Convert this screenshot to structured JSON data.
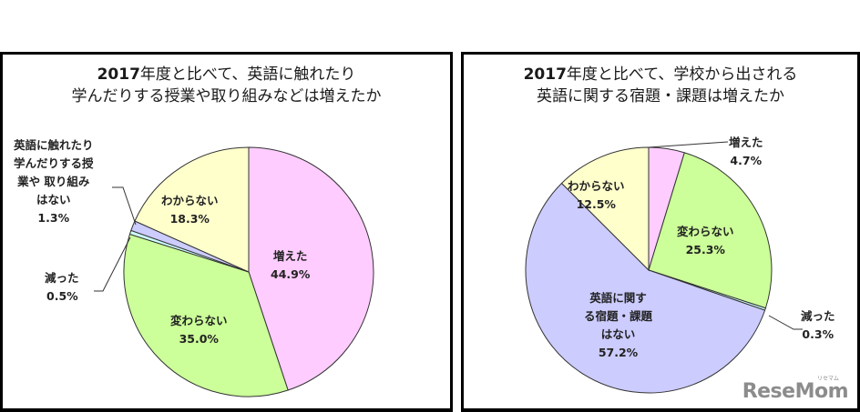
{
  "charts": [
    {
      "title_line1_bold": "2017",
      "title_line1": "年度と比べて、英語に触れたり",
      "title_line2": "学んだりする授業や取り組みなどは増えたか",
      "slices": [
        {
          "label": "増えた",
          "value": "44.9%",
          "color": "#FFCCFF"
        },
        {
          "label": "変わらない",
          "value": "35.0%",
          "color": "#CCFF99"
        },
        {
          "label": "減った",
          "value": "0.5%",
          "color": "#CCFFFF"
        },
        {
          "label_lines": [
            "英語に触れたり",
            "学んだりする授",
            "業や 取り組み",
            "はない"
          ],
          "value": "1.3%",
          "color": "#CCCCFF"
        },
        {
          "label": "わからない",
          "value": "18.3%",
          "color": "#FFFFCC"
        }
      ]
    },
    {
      "title_line1_bold": "2017",
      "title_line1": "年度と比べて、学校から出される",
      "title_line2": "英語に関する宿題・課題は増えたか",
      "slices": [
        {
          "label": "増えた",
          "value": "4.7%",
          "color": "#FFCCFF"
        },
        {
          "label": "変わらない",
          "value": "25.3%",
          "color": "#CCFF99"
        },
        {
          "label": "減った",
          "value": "0.3%",
          "color": "#CCFFFF"
        },
        {
          "label_lines": [
            "英語に関す",
            "る宿題・課題",
            "はない"
          ],
          "value": "57.2%",
          "color": "#CCCCFF"
        },
        {
          "label": "わからない",
          "value": "12.5%",
          "color": "#FFFFCC"
        }
      ]
    }
  ],
  "watermark": {
    "text": "ReseMom",
    "sub": "リセマム"
  },
  "chart_data": [
    {
      "type": "pie",
      "title": "2017年度と比べて、英語に触れたり学んだりする授業や取り組みなどは増えたか",
      "categories": [
        "増えた",
        "変わらない",
        "減った",
        "英語に触れたり学んだりする授業や取り組みはない",
        "わからない"
      ],
      "values": [
        44.9,
        35.0,
        0.5,
        1.3,
        18.3
      ],
      "colors": [
        "#FFCCFF",
        "#CCFF99",
        "#CCFFFF",
        "#CCCCFF",
        "#FFFFCC"
      ],
      "start_angle": "12 o'clock, clockwise",
      "unit": "%"
    },
    {
      "type": "pie",
      "title": "2017年度と比べて、学校から出される英語に関する宿題・課題は増えたか",
      "categories": [
        "増えた",
        "変わらない",
        "減った",
        "英語に関する宿題・課題はない",
        "わからない"
      ],
      "values": [
        4.7,
        25.3,
        0.3,
        57.2,
        12.5
      ],
      "colors": [
        "#FFCCFF",
        "#CCFF99",
        "#CCFFFF",
        "#CCCCFF",
        "#FFFFCC"
      ],
      "start_angle": "12 o'clock, clockwise",
      "unit": "%"
    }
  ]
}
